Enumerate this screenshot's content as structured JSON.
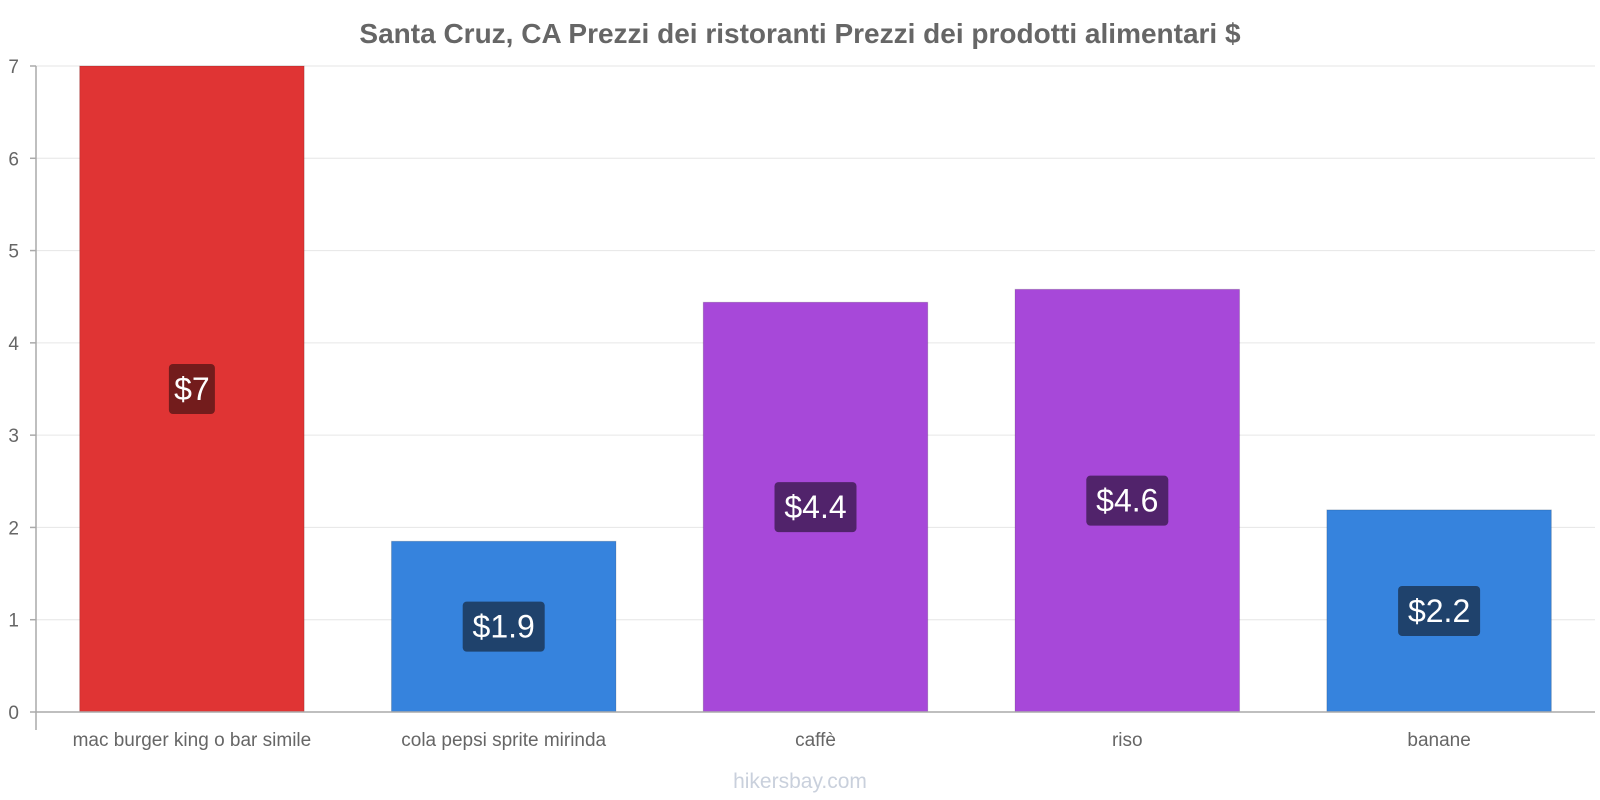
{
  "chart_data": {
    "type": "bar",
    "title": "Santa Cruz, CA Prezzi dei ristoranti Prezzi dei prodotti alimentari $",
    "categories": [
      "mac burger king o bar simile",
      "cola pepsi sprite mirinda",
      "caffè",
      "riso",
      "banane"
    ],
    "values": [
      7,
      1.85,
      4.44,
      4.58,
      2.19
    ],
    "value_labels": [
      "$7",
      "$1.9",
      "$4.4",
      "$4.6",
      "$2.2"
    ],
    "bar_colors": [
      "#e03434",
      "#3683dd",
      "#a748d9",
      "#a748d9",
      "#3683dd"
    ],
    "label_bg_colors": [
      "#731c1c",
      "#1f426c",
      "#51236b",
      "#51236b",
      "#1f426c"
    ],
    "ylim": [
      0,
      7
    ],
    "yticks": [
      0,
      1,
      2,
      3,
      4,
      5,
      6,
      7
    ],
    "grid": true,
    "xlabel": "",
    "ylabel": ""
  },
  "credit": "hikersbay.com"
}
